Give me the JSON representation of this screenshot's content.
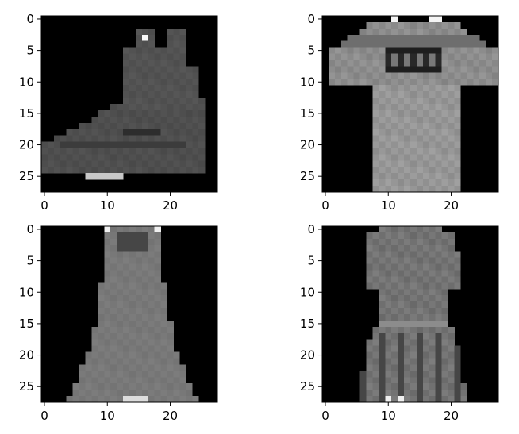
{
  "chart_data": [
    {
      "type": "heatmap",
      "colormap": "gray",
      "grid": false,
      "xlim": [
        -0.5,
        27.5
      ],
      "ylim": [
        27.5,
        -0.5
      ],
      "x_ticks": [
        0,
        10,
        20
      ],
      "y_ticks": [
        0,
        5,
        10,
        15,
        20,
        25
      ],
      "title": "",
      "xlabel": "",
      "ylabel": "",
      "subject": "ankle-boot"
    },
    {
      "type": "heatmap",
      "colormap": "gray",
      "grid": false,
      "xlim": [
        -0.5,
        27.5
      ],
      "ylim": [
        27.5,
        -0.5
      ],
      "x_ticks": [
        0,
        10,
        20
      ],
      "y_ticks": [
        0,
        5,
        10,
        15,
        20,
        25
      ],
      "title": "",
      "xlabel": "",
      "ylabel": "",
      "subject": "t-shirt"
    },
    {
      "type": "heatmap",
      "colormap": "gray",
      "grid": false,
      "xlim": [
        -0.5,
        27.5
      ],
      "ylim": [
        27.5,
        -0.5
      ],
      "x_ticks": [
        0,
        10,
        20
      ],
      "y_ticks": [
        0,
        5,
        10,
        15,
        20,
        25
      ],
      "title": "",
      "xlabel": "",
      "ylabel": "",
      "subject": "dress"
    },
    {
      "type": "heatmap",
      "colormap": "gray",
      "grid": false,
      "xlim": [
        -0.5,
        27.5
      ],
      "ylim": [
        27.5,
        -0.5
      ],
      "x_ticks": [
        0,
        10,
        20
      ],
      "y_ticks": [
        0,
        5,
        10,
        15,
        20,
        25
      ],
      "title": "",
      "xlabel": "",
      "ylabel": "",
      "subject": "dress"
    }
  ]
}
